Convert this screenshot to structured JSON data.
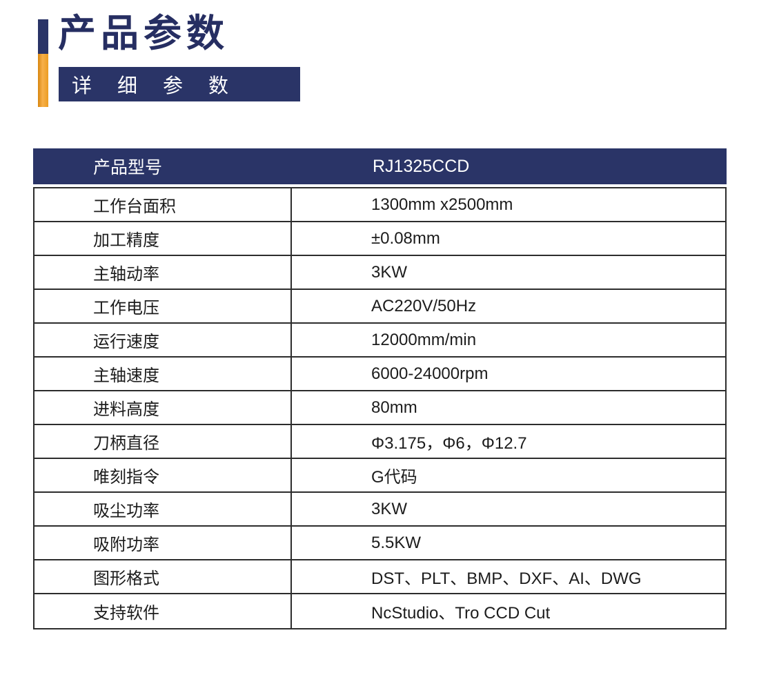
{
  "header": {
    "title": "产品参数",
    "subtitle": "详细参数"
  },
  "table": {
    "header": {
      "label": "产品型号",
      "value": "RJ1325CCD"
    },
    "rows": [
      {
        "label": "工作台面积",
        "value": "1300mm x2500mm"
      },
      {
        "label": "加工精度",
        "value": "±0.08mm"
      },
      {
        "label": "主轴动率",
        "value": "3KW"
      },
      {
        "label": "工作电压",
        "value": "AC220V/50Hz"
      },
      {
        "label": "运行速度",
        "value": "12000mm/min"
      },
      {
        "label": "主轴速度",
        "value": "6000-24000rpm"
      },
      {
        "label": "进料高度",
        "value": "80mm"
      },
      {
        "label": "刀柄直径",
        "value": "Φ3.175，Φ6，Φ12.7"
      },
      {
        "label": "唯刻指令",
        "value": "G代码"
      },
      {
        "label": "吸尘功率",
        "value": "3KW"
      },
      {
        "label": "吸附功率",
        "value": "5.5KW"
      },
      {
        "label": "图形格式",
        "value": "DST、PLT、BMP、DXF、AI、DWG"
      },
      {
        "label": "支持软件",
        "value": "NcStudio、Tro CCD Cut"
      }
    ]
  },
  "colors": {
    "navy": "#2a3467",
    "title_navy": "#262e62",
    "orange": "#f0a33a",
    "border": "#2c2c2c",
    "text": "#1c1c1c",
    "header_text": "#ffffff",
    "background": "#ffffff"
  }
}
